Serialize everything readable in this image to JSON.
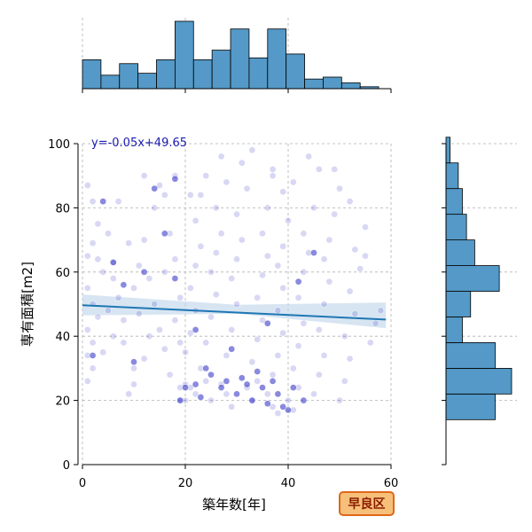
{
  "chart_data": {
    "type": "scatter",
    "xlabel": "築年数[年]",
    "ylabel": "専有面積[m2]",
    "xlim": [
      0,
      60
    ],
    "ylim": [
      0,
      100
    ],
    "xticks": [
      0,
      20,
      40,
      60
    ],
    "yticks": [
      0,
      20,
      40,
      60,
      80,
      100
    ],
    "grid": true,
    "regression": {
      "label": "y=-0.05x+49.65",
      "slope": -0.05,
      "intercept": 49.65,
      "ci_left_low": 46.5,
      "ci_left_high": 53.0,
      "ci_mid_low": 47.0,
      "ci_mid_high": 49.8,
      "ci_right_low": 42.5,
      "ci_right_high": 50.5,
      "line_color": "#1f77b4",
      "band_color": "#bcd4ea"
    },
    "point_color": "#3a3ac8",
    "bar_color": "#5499c7",
    "marginal_x": {
      "bin_start": 0,
      "bin_width": 3.6,
      "counts": [
        15,
        7,
        13,
        8,
        15,
        35,
        15,
        20,
        31,
        16,
        31,
        18,
        5,
        6,
        3,
        1
      ]
    },
    "marginal_y": {
      "bin_start": 14,
      "bin_width": 8,
      "counts": [
        12,
        16,
        12,
        4,
        6,
        13,
        7,
        5,
        4,
        3,
        1
      ]
    },
    "badge": "早良区",
    "badge_color": "#f7c07a",
    "badge_border": "#e0681a",
    "points": [
      [
        1,
        87
      ],
      [
        1,
        65
      ],
      [
        2,
        82
      ],
      [
        2,
        69
      ],
      [
        3,
        75
      ],
      [
        1,
        55
      ],
      [
        2,
        50
      ],
      [
        1,
        42
      ],
      [
        3,
        46
      ],
      [
        2,
        38
      ],
      [
        1,
        34
      ],
      [
        2,
        30
      ],
      [
        1,
        26
      ],
      [
        4,
        60
      ],
      [
        5,
        72
      ],
      [
        6,
        63
      ],
      [
        5,
        48
      ],
      [
        6,
        40
      ],
      [
        4,
        35
      ],
      [
        7,
        52
      ],
      [
        8,
        45
      ],
      [
        6,
        58
      ],
      [
        9,
        69
      ],
      [
        8,
        38
      ],
      [
        10,
        30
      ],
      [
        9,
        22
      ],
      [
        10,
        55
      ],
      [
        11,
        62
      ],
      [
        12,
        70
      ],
      [
        11,
        47
      ],
      [
        13,
        40
      ],
      [
        12,
        33
      ],
      [
        10,
        25
      ],
      [
        14,
        80
      ],
      [
        15,
        87
      ],
      [
        13,
        58
      ],
      [
        14,
        50
      ],
      [
        15,
        42
      ],
      [
        16,
        36
      ],
      [
        17,
        28
      ],
      [
        16,
        60
      ],
      [
        18,
        90
      ],
      [
        17,
        72
      ],
      [
        18,
        64
      ],
      [
        19,
        52
      ],
      [
        18,
        45
      ],
      [
        19,
        38
      ],
      [
        19,
        24
      ],
      [
        19,
        20
      ],
      [
        20,
        25
      ],
      [
        20,
        20
      ],
      [
        21,
        24
      ],
      [
        22,
        22
      ],
      [
        20,
        35
      ],
      [
        21,
        41
      ],
      [
        22,
        48
      ],
      [
        21,
        55
      ],
      [
        22,
        62
      ],
      [
        23,
        68
      ],
      [
        22,
        76
      ],
      [
        21,
        84
      ],
      [
        24,
        90
      ],
      [
        23,
        30
      ],
      [
        24,
        26
      ],
      [
        25,
        20
      ],
      [
        24,
        38
      ],
      [
        25,
        46
      ],
      [
        26,
        53
      ],
      [
        25,
        60
      ],
      [
        26,
        66
      ],
      [
        27,
        72
      ],
      [
        26,
        80
      ],
      [
        28,
        88
      ],
      [
        27,
        25
      ],
      [
        28,
        22
      ],
      [
        29,
        18
      ],
      [
        28,
        34
      ],
      [
        29,
        42
      ],
      [
        30,
        50
      ],
      [
        29,
        58
      ],
      [
        30,
        64
      ],
      [
        31,
        70
      ],
      [
        30,
        78
      ],
      [
        32,
        86
      ],
      [
        31,
        94
      ],
      [
        32,
        24
      ],
      [
        33,
        20
      ],
      [
        34,
        26
      ],
      [
        33,
        32
      ],
      [
        34,
        39
      ],
      [
        35,
        45
      ],
      [
        34,
        52
      ],
      [
        35,
        59
      ],
      [
        36,
        65
      ],
      [
        35,
        72
      ],
      [
        36,
        80
      ],
      [
        37,
        90
      ],
      [
        36,
        22
      ],
      [
        37,
        18
      ],
      [
        38,
        16
      ],
      [
        37,
        28
      ],
      [
        38,
        34
      ],
      [
        39,
        41
      ],
      [
        38,
        48
      ],
      [
        39,
        55
      ],
      [
        38,
        62
      ],
      [
        39,
        68
      ],
      [
        40,
        76
      ],
      [
        39,
        85
      ],
      [
        40,
        20
      ],
      [
        41,
        17
      ],
      [
        42,
        24
      ],
      [
        41,
        30
      ],
      [
        42,
        37
      ],
      [
        43,
        44
      ],
      [
        42,
        52
      ],
      [
        43,
        60
      ],
      [
        44,
        66
      ],
      [
        43,
        72
      ],
      [
        45,
        80
      ],
      [
        44,
        96
      ],
      [
        45,
        22
      ],
      [
        46,
        28
      ],
      [
        47,
        34
      ],
      [
        46,
        42
      ],
      [
        47,
        50
      ],
      [
        48,
        57
      ],
      [
        47,
        64
      ],
      [
        48,
        70
      ],
      [
        49,
        78
      ],
      [
        50,
        86
      ],
      [
        49,
        92
      ],
      [
        50,
        20
      ],
      [
        51,
        26
      ],
      [
        52,
        33
      ],
      [
        51,
        40
      ],
      [
        53,
        47
      ],
      [
        52,
        54
      ],
      [
        54,
        61
      ],
      [
        53,
        67
      ],
      [
        55,
        74
      ],
      [
        56,
        38
      ],
      [
        57,
        44
      ],
      [
        58,
        48
      ],
      [
        3,
        64
      ],
      [
        7,
        82
      ],
      [
        12,
        90
      ],
      [
        16,
        84
      ],
      [
        23,
        84
      ],
      [
        27,
        96
      ],
      [
        33,
        98
      ],
      [
        37,
        92
      ],
      [
        41,
        88
      ],
      [
        46,
        92
      ],
      [
        52,
        82
      ],
      [
        55,
        65
      ]
    ],
    "dark_points": [
      [
        2,
        34
      ],
      [
        6,
        63
      ],
      [
        8,
        56
      ],
      [
        12,
        60
      ],
      [
        16,
        72
      ],
      [
        18,
        58
      ],
      [
        19,
        20
      ],
      [
        20,
        24
      ],
      [
        22,
        25
      ],
      [
        23,
        21
      ],
      [
        24,
        30
      ],
      [
        25,
        28
      ],
      [
        27,
        24
      ],
      [
        28,
        26
      ],
      [
        30,
        22
      ],
      [
        31,
        27
      ],
      [
        32,
        25
      ],
      [
        33,
        20
      ],
      [
        34,
        29
      ],
      [
        35,
        24
      ],
      [
        36,
        19
      ],
      [
        37,
        26
      ],
      [
        38,
        22
      ],
      [
        39,
        18
      ],
      [
        40,
        17
      ],
      [
        41,
        24
      ],
      [
        43,
        20
      ],
      [
        18,
        89
      ],
      [
        14,
        86
      ],
      [
        45,
        66
      ],
      [
        22,
        42
      ],
      [
        29,
        36
      ],
      [
        36,
        44
      ],
      [
        42,
        57
      ],
      [
        10,
        32
      ],
      [
        4,
        82
      ]
    ]
  }
}
